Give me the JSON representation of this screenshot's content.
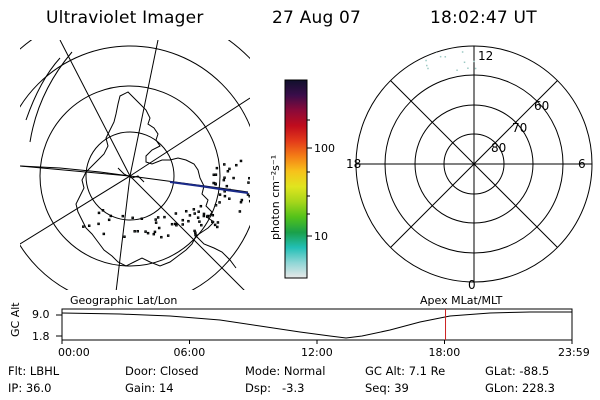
{
  "header": {
    "instrument": "Ultraviolet Imager",
    "date": "27 Aug 07",
    "time": "18:02:47 UT"
  },
  "colors": {
    "line": "#000000",
    "trajectory": "#1a2a8a",
    "marker": "#cc2222",
    "aurora_speckle": "#9cc9c4"
  },
  "colorbar": {
    "unit_label": "photon cm⁻²s⁻¹",
    "ticks": [
      "100",
      "10"
    ],
    "scale": "log",
    "stops": [
      "#e8e8e8",
      "#8fd6d6",
      "#22bfb5",
      "#1aa04a",
      "#53c21a",
      "#a6d61b",
      "#e0e51f",
      "#f7c21b",
      "#f47d16",
      "#e33a1a",
      "#c00c1d",
      "#8b0a39",
      "#3a0d4a",
      "#10102c"
    ]
  },
  "geo_map": {
    "projection": "Geographic Lat/Lon"
  },
  "polar_grid": {
    "lat_labels": [
      "80",
      "70",
      "60"
    ],
    "mlt_labels": {
      "top": "12",
      "left": "18",
      "right": "6",
      "bottom": "0"
    }
  },
  "timeline": {
    "left_label": "Geographic Lat/Lon",
    "right_label": "Apex MLat/MLT",
    "axis_title": "GC Alt",
    "y_ticks": [
      "9.0",
      "1.8"
    ],
    "x_ticks": [
      "00:00",
      "06:00",
      "12:00",
      "18:00",
      "23:59"
    ],
    "current_time_fraction": 0.752
  },
  "status": {
    "filter_label": "Flt:",
    "filter_value": "LBHL",
    "door_label": "Door:",
    "door_value": "Closed",
    "mode_label": "Mode:",
    "mode_value": "Normal",
    "gcalt_label": "GC Alt:",
    "gcalt_value": "7.1 Re",
    "glat_label": "GLat:",
    "glat_value": "-88.5",
    "ip_label": "IP:",
    "ip_value": "36.0",
    "gain_label": "Gain:",
    "gain_value": "14",
    "dsp_label": "Dsp:",
    "dsp_value": "-3.3",
    "seq_label": "Seq:",
    "seq_value": "39",
    "glon_label": "GLon:",
    "glon_value": "228.3"
  }
}
